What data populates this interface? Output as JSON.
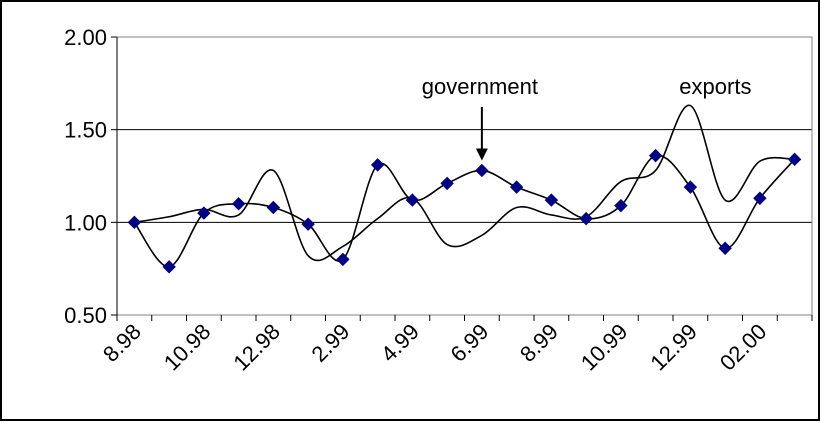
{
  "chart_data": {
    "type": "line",
    "title": "",
    "xlabel": "",
    "ylabel": "",
    "ylim": [
      0.5,
      2.0
    ],
    "y_ticks": [
      "0.50",
      "1.00",
      "1.50",
      "2.00"
    ],
    "x_tick_labels": [
      "8.98",
      "10.98",
      "12.98",
      "2.99",
      "4.99",
      "6.99",
      "8.99",
      "10.99",
      "12.99",
      "02.00"
    ],
    "grid": "horizontal",
    "legend": "none",
    "x": [
      "8.98",
      "9.98",
      "10.98",
      "11.98",
      "12.98",
      "1.99",
      "2.99",
      "3.99",
      "4.99",
      "5.99",
      "6.99",
      "7.99",
      "8.99",
      "9.99",
      "10.99",
      "11.99",
      "12.99",
      "1.00",
      "02.00",
      "3.00"
    ],
    "series": [
      {
        "label": "government",
        "marker": "diamond",
        "color": "#000080",
        "values": [
          1.0,
          0.76,
          1.05,
          1.1,
          1.08,
          0.99,
          0.8,
          1.31,
          1.12,
          1.21,
          1.28,
          1.19,
          1.12,
          1.02,
          1.09,
          1.36,
          1.19,
          0.86,
          1.13,
          1.34
        ]
      },
      {
        "label": "exports",
        "marker": "none",
        "color": "#000000",
        "values": [
          1.0,
          1.03,
          1.07,
          1.04,
          1.28,
          0.82,
          0.87,
          1.02,
          1.13,
          0.88,
          0.93,
          1.08,
          1.04,
          1.03,
          1.22,
          1.28,
          1.63,
          1.12,
          1.33,
          1.34
        ]
      }
    ],
    "annotations": [
      {
        "text": "government",
        "series": 0,
        "index": 10,
        "arrow": true
      },
      {
        "text": "exports",
        "series": 1,
        "index": 16,
        "arrow": false
      }
    ]
  }
}
